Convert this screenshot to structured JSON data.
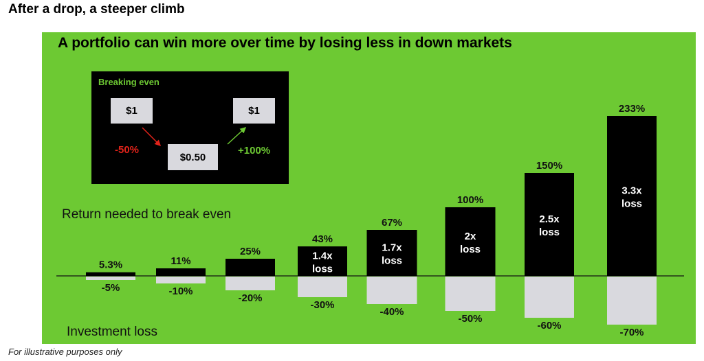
{
  "page_title": "After a drop, a steeper climb",
  "footnote": "For illustrative purposes only",
  "colors": {
    "panel": "#6dc933",
    "gain_bar": "#000000",
    "loss_bar": "#d9d9de",
    "negative": "#e2231a",
    "positive": "#6dc933"
  },
  "inset": {
    "title": "Breaking even",
    "start_value": "$1",
    "mid_value": "$0.50",
    "end_value": "$1",
    "drop_pct": "-50%",
    "gain_pct": "+100%"
  },
  "chart_data": {
    "type": "bar",
    "title": "A portfolio can win more over time by losing less in down markets",
    "upper_section_label": "Return needed to break even",
    "lower_section_label": "Investment loss",
    "categories": [
      "-5%",
      "-10%",
      "-20%",
      "-30%",
      "-40%",
      "-50%",
      "-60%",
      "-70%"
    ],
    "series": [
      {
        "values": [
          5.3,
          11,
          25,
          43,
          67,
          100,
          150,
          233
        ],
        "labels": [
          "5.3%",
          "11%",
          "25%",
          "43%",
          "67%",
          "100%",
          "150%",
          "233%"
        ],
        "bar_text": [
          "",
          "",
          "",
          "1.4x loss",
          "1.7x loss",
          "2x loss",
          "2.5x loss",
          "3.3x loss"
        ]
      },
      {
        "values": [
          -5,
          -10,
          -20,
          -30,
          -40,
          -50,
          -60,
          -70
        ],
        "labels": [
          "-5%",
          "-10%",
          "-20%",
          "-30%",
          "-40%",
          "-50%",
          "-60%",
          "-70%"
        ]
      }
    ],
    "ylim": [
      -70,
      233
    ]
  }
}
